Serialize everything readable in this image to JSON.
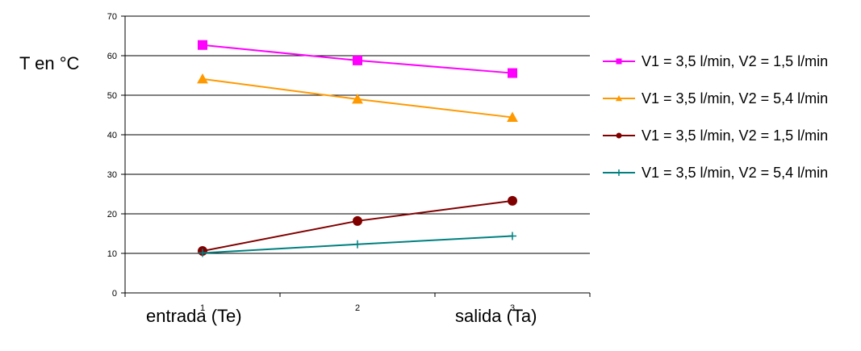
{
  "chart_data": {
    "type": "line",
    "title": "",
    "ylabel": "T en °C",
    "xlabel": "",
    "x_notes": {
      "left": "entrada (Te)",
      "right": "salida (Ta)"
    },
    "categories": [
      "1",
      "2",
      "3"
    ],
    "ylim": [
      0,
      70
    ],
    "yticks": [
      0,
      10,
      20,
      30,
      40,
      50,
      60,
      70
    ],
    "grid": true,
    "legend_position": "right",
    "series": [
      {
        "name": "V1 = 3,5 l/min, V2 = 1,5 l/min",
        "values": [
          62.7,
          58.8,
          55.6
        ],
        "color": "#ff00ff",
        "marker": "square"
      },
      {
        "name": "V1 = 3,5 l/min, V2 = 5,4 l/min",
        "values": [
          54.1,
          49.0,
          44.4
        ],
        "color": "#ff9900",
        "marker": "triangle"
      },
      {
        "name": "V1 = 3,5 l/min, V2 = 1,5 l/min",
        "values": [
          10.6,
          18.2,
          23.3
        ],
        "color": "#800000",
        "marker": "circle"
      },
      {
        "name": "V1 = 3,5 l/min, V2 = 5,4 l/min",
        "values": [
          10.1,
          12.3,
          14.4
        ],
        "color": "#008080",
        "marker": "plus"
      }
    ]
  }
}
